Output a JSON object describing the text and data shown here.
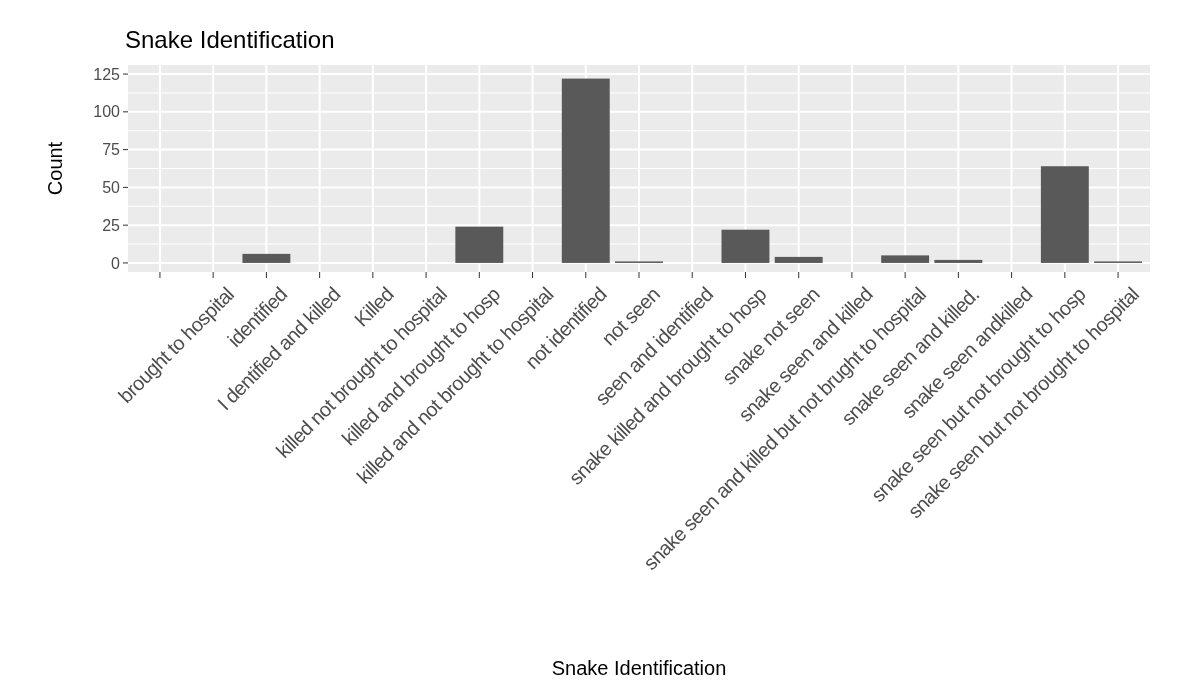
{
  "chart_data": {
    "type": "bar",
    "title": "Snake Identification",
    "xlabel": "Snake Identification",
    "ylabel": "Count",
    "categories": [
      null,
      "brought to hospital",
      "identified",
      "I dentified and killed",
      "Killed",
      "killed  not brought to hospital",
      "killed and brought to hosp",
      "killed and not brought to hospital",
      "not identified",
      "not seen",
      "seen  and identified",
      "snake killed and brought to hosp",
      "snake not seen",
      "snake seen and killed",
      "snake seen and killed but not brught to hospital",
      "snake seen and killed.",
      "snake seen  andkilled",
      "snake seen but not brought to hosp",
      "snake seen but not brought to hospital"
    ],
    "values": [
      0,
      0,
      6,
      0,
      0,
      0,
      24,
      0,
      122,
      1,
      0,
      22,
      4,
      0,
      5,
      2,
      0,
      64,
      1
    ],
    "color": "#595959",
    "ylim": [
      -6,
      131
    ],
    "yticks": [
      0,
      25,
      50,
      75,
      100,
      125
    ],
    "grid": true
  }
}
